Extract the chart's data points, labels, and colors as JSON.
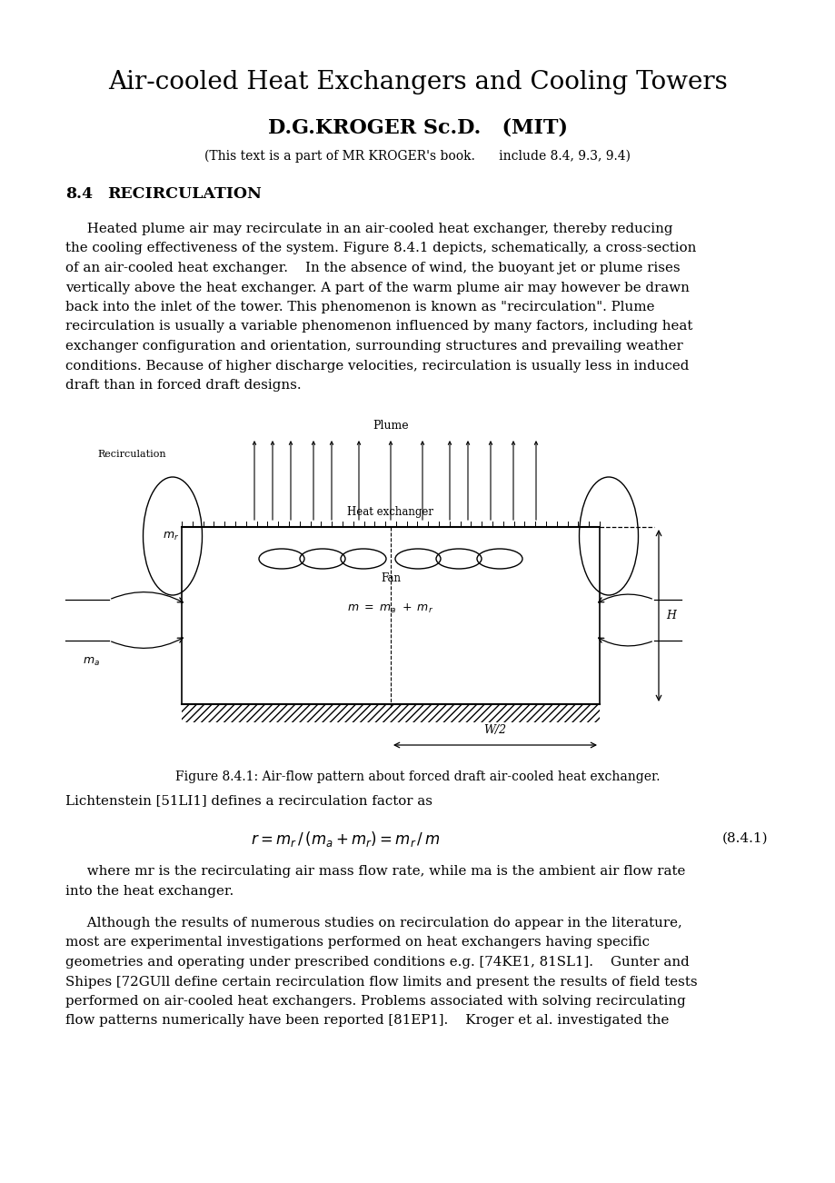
{
  "title": "Air-cooled Heat Exchangers and Cooling Towers",
  "author": "D.G.KROGER Sc.D.   (MIT)",
  "subtitle": "(This text is a part of MR KROGER's book.      include 8.4, 9.3, 9.4)",
  "section_num": "8.4",
  "section_title": "RECIRCULATION",
  "para1_lines": [
    "     Heated plume air may recirculate in an air-cooled heat exchanger, thereby reducing",
    "the cooling effectiveness of the system. Figure 8.4.1 depicts, schematically, a cross-section",
    "of an air-cooled heat exchanger.    In the absence of wind, the buoyant jet or plume rises",
    "vertically above the heat exchanger. A part of the warm plume air may however be drawn",
    "back into the inlet of the tower. This phenomenon is known as \"recirculation\". Plume",
    "recirculation is usually a variable phenomenon influenced by many factors, including heat",
    "exchanger configuration and orientation, surrounding structures and prevailing weather",
    "conditions. Because of higher discharge velocities, recirculation is usually less in induced",
    "draft than in forced draft designs."
  ],
  "fig_caption": "Figure 8.4.1: Air-flow pattern about forced draft air-cooled heat exchanger.",
  "lichtenstein": "Lichtenstein [51LI1] defines a recirculation factor as",
  "eq_number": "(8.4.1)",
  "para2_lines": [
    "     where mr is the recirculating air mass flow rate, while ma is the ambient air flow rate",
    "into the heat exchanger."
  ],
  "para3_lines": [
    "     Although the results of numerous studies on recirculation do appear in the literature,",
    "most are experimental investigations performed on heat exchangers having specific",
    "geometries and operating under prescribed conditions e.g. [74KE1, 81SL1].    Gunter and",
    "Shipes [72GUll define certain recirculation flow limits and present the results of field tests",
    "performed on air-cooled heat exchangers. Problems associated with solving recirculating",
    "flow patterns numerically have been reported [81EP1].    Kroger et al. investigated the"
  ],
  "bg_color": "#ffffff",
  "text_color": "#000000"
}
